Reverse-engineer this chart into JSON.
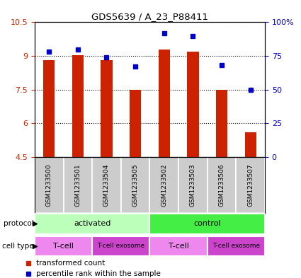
{
  "title": "GDS5639 / A_23_P88411",
  "samples": [
    "GSM1233500",
    "GSM1233501",
    "GSM1233504",
    "GSM1233505",
    "GSM1233502",
    "GSM1233503",
    "GSM1233506",
    "GSM1233507"
  ],
  "transformed_count": [
    8.8,
    9.05,
    8.8,
    7.5,
    9.3,
    9.2,
    7.5,
    5.6
  ],
  "percentile_rank": [
    78,
    80,
    74,
    67,
    92,
    90,
    68,
    50
  ],
  "ylim_left": [
    4.5,
    10.5
  ],
  "ylim_right": [
    0,
    100
  ],
  "yticks_left": [
    4.5,
    6.0,
    7.5,
    9.0,
    10.5
  ],
  "ytick_labels_left": [
    "4.5",
    "6",
    "7.5",
    "9",
    "10.5"
  ],
  "yticks_right": [
    0,
    25,
    50,
    75,
    100
  ],
  "ytick_labels_right": [
    "0",
    "25",
    "50",
    "75",
    "100%"
  ],
  "bar_color": "#cc2200",
  "dot_color": "#0000cc",
  "bar_bottom": 4.5,
  "protocol_groups": [
    {
      "label": "activated",
      "start": 0,
      "end": 4,
      "color": "#bbffbb"
    },
    {
      "label": "control",
      "start": 4,
      "end": 8,
      "color": "#44ee44"
    }
  ],
  "cell_type_groups": [
    {
      "label": "T-cell",
      "start": 0,
      "end": 2,
      "color": "#ee88ee"
    },
    {
      "label": "T-cell exosome",
      "start": 2,
      "end": 4,
      "color": "#cc44cc"
    },
    {
      "label": "T-cell",
      "start": 4,
      "end": 6,
      "color": "#ee88ee"
    },
    {
      "label": "T-cell exosome",
      "start": 6,
      "end": 8,
      "color": "#cc44cc"
    }
  ],
  "legend_items": [
    {
      "label": "transformed count",
      "color": "#cc2200"
    },
    {
      "label": "percentile rank within the sample",
      "color": "#0000cc"
    }
  ],
  "bg_color": "#ffffff",
  "plot_bg_color": "#ffffff",
  "tick_color_left": "#cc2200",
  "tick_color_right": "#0000cc",
  "sample_bg_color": "#cccccc",
  "sample_sep_color": "#ffffff"
}
